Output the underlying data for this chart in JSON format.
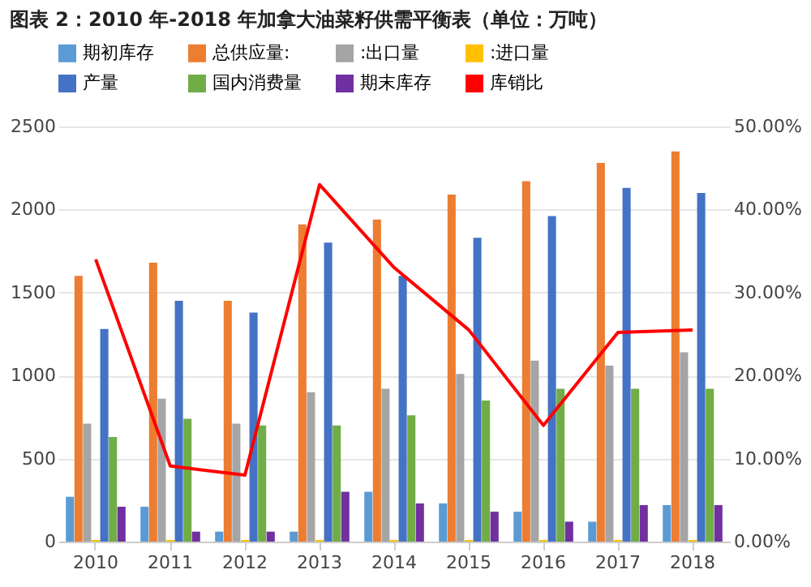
{
  "chart_data": {
    "type": "bar",
    "title": "图表 2：2010 年-2018 年加拿大油菜籽供需平衡表（单位：万吨）",
    "categories": [
      "2010",
      "2011",
      "2012",
      "2013",
      "2014",
      "2015",
      "2016",
      "2017",
      "2018"
    ],
    "series": [
      {
        "name": "期初库存",
        "color": "#5b9bd5",
        "values": [
          270,
          210,
          60,
          60,
          300,
          230,
          180,
          120,
          220
        ]
      },
      {
        "name": "总供应量:",
        "color": "#ed7d31",
        "values": [
          1600,
          1680,
          1450,
          1910,
          1940,
          2090,
          2170,
          2280,
          2350
        ]
      },
      {
        "name": ":出口量",
        "color": "#a5a5a5",
        "values": [
          710,
          860,
          710,
          900,
          920,
          1010,
          1090,
          1060,
          1140
        ]
      },
      {
        "name": ":进口量",
        "color": "#ffc000",
        "values": [
          10,
          10,
          10,
          10,
          10,
          10,
          10,
          10,
          10
        ]
      },
      {
        "name": "产量",
        "color": "#4472c4",
        "values": [
          1280,
          1450,
          1380,
          1800,
          1600,
          1830,
          1960,
          2130,
          2100
        ]
      },
      {
        "name": "国内消费量",
        "color": "#70ad47",
        "values": [
          630,
          740,
          700,
          700,
          760,
          850,
          920,
          920,
          920
        ]
      },
      {
        "name": "期末库存",
        "color": "#7030a0",
        "values": [
          210,
          60,
          60,
          300,
          230,
          180,
          120,
          220,
          220
        ]
      },
      {
        "name": "库销比",
        "color": "#ff0000",
        "type": "line",
        "axis": "y2",
        "values": [
          34,
          9.1,
          8,
          43,
          33,
          25.5,
          14,
          25.2,
          25.5
        ]
      }
    ],
    "ylim": [
      0,
      2500
    ],
    "yticks": [
      0,
      500,
      1000,
      1500,
      2000,
      2500
    ],
    "y2lim": [
      0,
      50
    ],
    "y2ticks": [
      {
        "value": 0,
        "label": "0.00%"
      },
      {
        "value": 10,
        "label": "10.00%"
      },
      {
        "value": 20,
        "label": "20.00%"
      },
      {
        "value": 30,
        "label": "30.00%"
      },
      {
        "value": 40,
        "label": "40.00%"
      },
      {
        "value": 50,
        "label": "50.00%"
      }
    ],
    "grid": "y",
    "legend": "top",
    "marker": "none",
    "line_style": "solid"
  }
}
